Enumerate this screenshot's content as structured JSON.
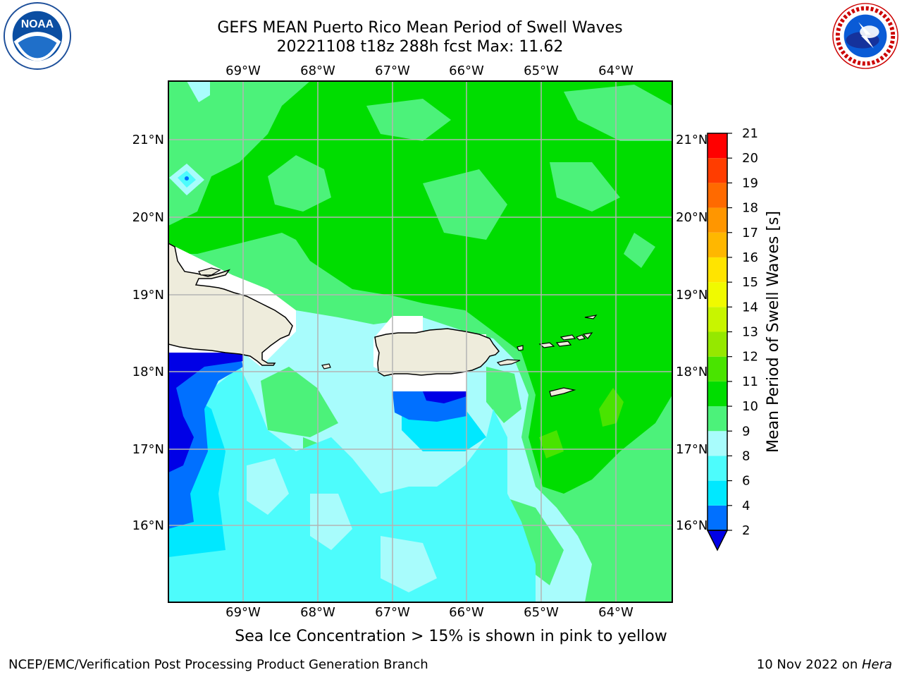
{
  "header": {
    "title_line1": "GEFS MEAN Puerto Rico Mean Period of Swell Waves",
    "title_line2": "20221108 t18z 288h fcst   Max: 11.62"
  },
  "logos": {
    "left": {
      "name": "noaa-logo",
      "text": "NOAA",
      "ring_text": "NATIONAL OCEANIC AND ATMOSPHERIC ADMINISTRATION · U.S. DEPARTMENT OF COMMERCE"
    },
    "right": {
      "name": "nws-logo",
      "ring_text": "NATIONAL WEATHER SERVICE"
    }
  },
  "map": {
    "region": "Puerto Rico",
    "lon_ticks": [
      "69°W",
      "68°W",
      "67°W",
      "66°W",
      "65°W",
      "64°W"
    ],
    "lat_ticks": [
      "21°N",
      "20°N",
      "19°N",
      "18°N",
      "17°N",
      "16°N"
    ],
    "gridlines": true,
    "land_color": "#eeecdc"
  },
  "colorbar": {
    "label": "Mean Period of Swell Waves [s]",
    "ticks": [
      "2",
      "4",
      "6",
      "8",
      "9",
      "10",
      "11",
      "12",
      "13",
      "14",
      "15",
      "16",
      "17",
      "18",
      "19",
      "20",
      "21"
    ],
    "colors": [
      "#0000e6",
      "#0070ff",
      "#00e8ff",
      "#4dfcfc",
      "#a8fcfc",
      "#4cf27a",
      "#00dd00",
      "#49e400",
      "#95e800",
      "#c8f500",
      "#f0fa00",
      "#ffe400",
      "#ffb700",
      "#ff9600",
      "#ff6a00",
      "#ff3d00",
      "#ff0000"
    ],
    "extend": "min"
  },
  "caption": "Sea Ice Concentration > 15% is shown in pink to yellow",
  "footer": {
    "left": "NCEP/EMC/Verification Post Processing Product Generation Branch",
    "right_date": "10 Nov 2022 on ",
    "right_host": "Hera"
  }
}
